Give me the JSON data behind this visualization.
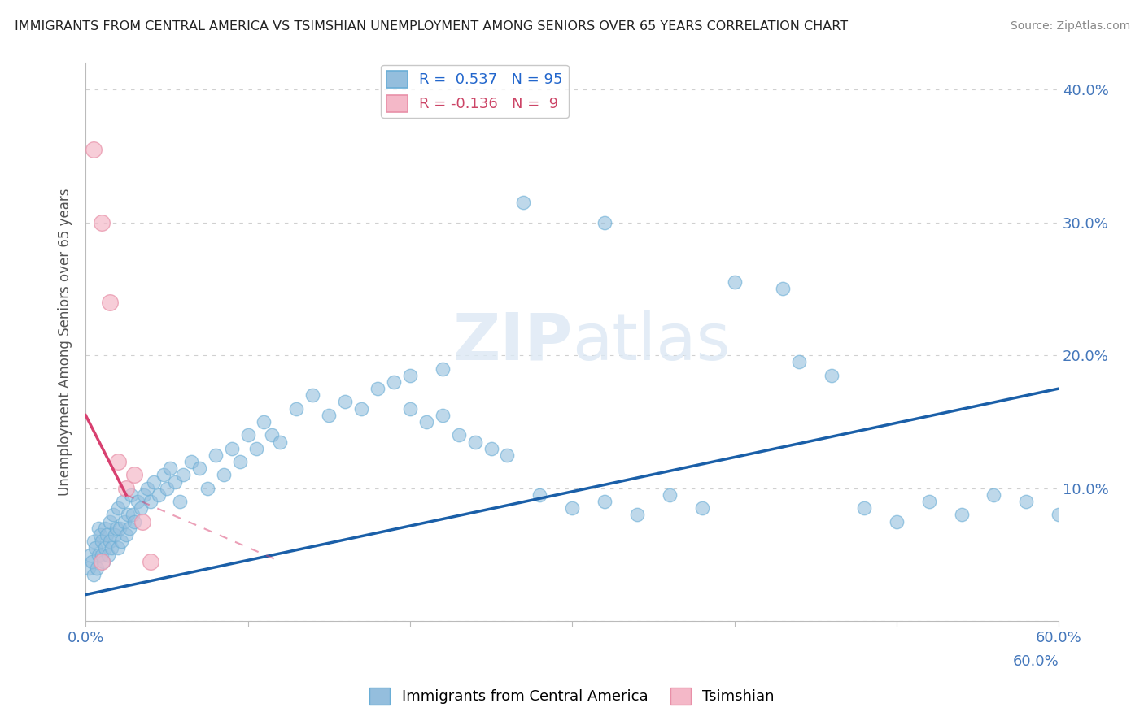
{
  "title": "IMMIGRANTS FROM CENTRAL AMERICA VS TSIMSHIAN UNEMPLOYMENT AMONG SENIORS OVER 65 YEARS CORRELATION CHART",
  "source": "Source: ZipAtlas.com",
  "ylabel": "Unemployment Among Seniors over 65 years",
  "watermark": "ZIPatlas",
  "legend": [
    {
      "label": "R =  0.537   N = 95",
      "color": "#a8c8e8"
    },
    {
      "label": "R = -0.136   N =  9",
      "color": "#f4a8bc"
    }
  ],
  "blue_scatter": [
    [
      0.2,
      4.0
    ],
    [
      0.3,
      5.0
    ],
    [
      0.4,
      4.5
    ],
    [
      0.5,
      6.0
    ],
    [
      0.5,
      3.5
    ],
    [
      0.6,
      5.5
    ],
    [
      0.7,
      4.0
    ],
    [
      0.8,
      7.0
    ],
    [
      0.8,
      5.0
    ],
    [
      0.9,
      6.5
    ],
    [
      1.0,
      5.0
    ],
    [
      1.0,
      6.0
    ],
    [
      1.1,
      4.5
    ],
    [
      1.2,
      7.0
    ],
    [
      1.2,
      5.5
    ],
    [
      1.3,
      6.5
    ],
    [
      1.4,
      5.0
    ],
    [
      1.5,
      7.5
    ],
    [
      1.5,
      6.0
    ],
    [
      1.6,
      5.5
    ],
    [
      1.7,
      8.0
    ],
    [
      1.8,
      6.5
    ],
    [
      1.9,
      7.0
    ],
    [
      2.0,
      5.5
    ],
    [
      2.0,
      8.5
    ],
    [
      2.1,
      7.0
    ],
    [
      2.2,
      6.0
    ],
    [
      2.3,
      9.0
    ],
    [
      2.4,
      7.5
    ],
    [
      2.5,
      6.5
    ],
    [
      2.6,
      8.0
    ],
    [
      2.7,
      7.0
    ],
    [
      2.8,
      9.5
    ],
    [
      2.9,
      8.0
    ],
    [
      3.0,
      7.5
    ],
    [
      3.2,
      9.0
    ],
    [
      3.4,
      8.5
    ],
    [
      3.6,
      9.5
    ],
    [
      3.8,
      10.0
    ],
    [
      4.0,
      9.0
    ],
    [
      4.2,
      10.5
    ],
    [
      4.5,
      9.5
    ],
    [
      4.8,
      11.0
    ],
    [
      5.0,
      10.0
    ],
    [
      5.2,
      11.5
    ],
    [
      5.5,
      10.5
    ],
    [
      5.8,
      9.0
    ],
    [
      6.0,
      11.0
    ],
    [
      6.5,
      12.0
    ],
    [
      7.0,
      11.5
    ],
    [
      7.5,
      10.0
    ],
    [
      8.0,
      12.5
    ],
    [
      8.5,
      11.0
    ],
    [
      9.0,
      13.0
    ],
    [
      9.5,
      12.0
    ],
    [
      10.0,
      14.0
    ],
    [
      10.5,
      13.0
    ],
    [
      11.0,
      15.0
    ],
    [
      11.5,
      14.0
    ],
    [
      12.0,
      13.5
    ],
    [
      13.0,
      16.0
    ],
    [
      14.0,
      17.0
    ],
    [
      15.0,
      15.5
    ],
    [
      16.0,
      16.5
    ],
    [
      17.0,
      16.0
    ],
    [
      18.0,
      17.5
    ],
    [
      19.0,
      18.0
    ],
    [
      20.0,
      16.0
    ],
    [
      21.0,
      15.0
    ],
    [
      22.0,
      15.5
    ],
    [
      23.0,
      14.0
    ],
    [
      24.0,
      13.5
    ],
    [
      25.0,
      13.0
    ],
    [
      26.0,
      12.5
    ],
    [
      28.0,
      9.5
    ],
    [
      30.0,
      8.5
    ],
    [
      32.0,
      9.0
    ],
    [
      34.0,
      8.0
    ],
    [
      36.0,
      9.5
    ],
    [
      38.0,
      8.5
    ],
    [
      27.0,
      31.5
    ],
    [
      32.0,
      30.0
    ],
    [
      40.0,
      25.5
    ],
    [
      43.0,
      25.0
    ],
    [
      44.0,
      19.5
    ],
    [
      46.0,
      18.5
    ],
    [
      48.0,
      8.5
    ],
    [
      50.0,
      7.5
    ],
    [
      52.0,
      9.0
    ],
    [
      54.0,
      8.0
    ],
    [
      56.0,
      9.5
    ],
    [
      58.0,
      9.0
    ],
    [
      60.0,
      8.0
    ],
    [
      20.0,
      18.5
    ],
    [
      22.0,
      19.0
    ]
  ],
  "pink_scatter": [
    [
      0.5,
      35.5
    ],
    [
      1.0,
      30.0
    ],
    [
      1.5,
      24.0
    ],
    [
      2.0,
      12.0
    ],
    [
      2.5,
      10.0
    ],
    [
      3.0,
      11.0
    ],
    [
      3.5,
      7.5
    ],
    [
      4.0,
      4.5
    ],
    [
      1.0,
      4.5
    ]
  ],
  "blue_line": [
    [
      0,
      2.0
    ],
    [
      60,
      17.5
    ]
  ],
  "pink_line_solid": [
    [
      0.0,
      15.5
    ],
    [
      2.5,
      9.5
    ]
  ],
  "pink_line_dashed": [
    [
      2.5,
      9.5
    ],
    [
      12.0,
      4.5
    ]
  ],
  "xlim": [
    0,
    60
  ],
  "ylim": [
    0,
    42
  ],
  "yticks": [
    0,
    10,
    20,
    30,
    40
  ],
  "grid_color": "#d0d0d0",
  "blue_color": "#94bedd",
  "blue_edge_color": "#6aaed6",
  "pink_color": "#f4b8c8",
  "pink_edge_color": "#e890a8",
  "blue_line_color": "#1a5fa8",
  "pink_line_color": "#d84070",
  "bg_color": "#ffffff"
}
